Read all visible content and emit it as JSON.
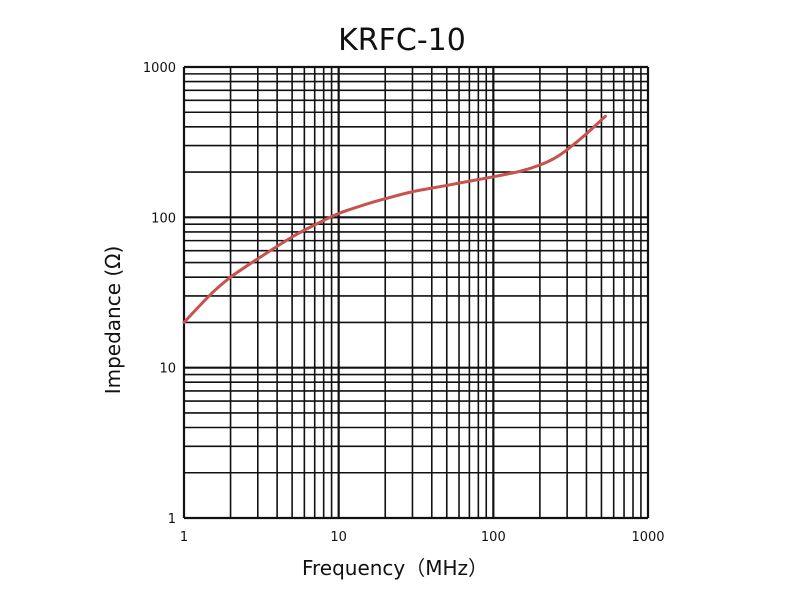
{
  "chart_data": {
    "type": "line",
    "title": "KRFC-10",
    "xlabel": "Frequency（MHz）",
    "ylabel": "Impedance (Ω)",
    "x_scale": "log",
    "y_scale": "log",
    "xlim": [
      1,
      1000
    ],
    "ylim": [
      1,
      1000
    ],
    "x_ticks": [
      "1",
      "10",
      "100",
      "1000"
    ],
    "y_ticks": [
      "1",
      "10",
      "100",
      "1000"
    ],
    "grid": true,
    "series": [
      {
        "color": "#c8524e",
        "x": [
          1,
          1.5,
          2,
          3,
          5,
          7,
          10,
          15,
          20,
          30,
          50,
          70,
          100,
          150,
          200,
          250,
          300,
          400,
          530
        ],
        "y": [
          20,
          31,
          40,
          53,
          74,
          89,
          106,
          122,
          133,
          148,
          163,
          174,
          186,
          203,
          223,
          248,
          282,
          360,
          470
        ]
      }
    ]
  }
}
